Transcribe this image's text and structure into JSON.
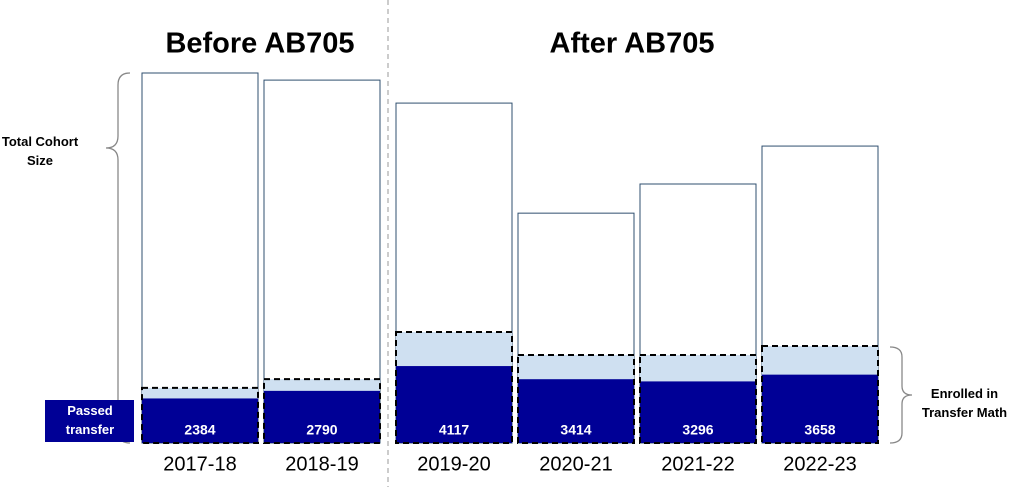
{
  "chart_data": {
    "type": "overlap-bar",
    "period_labels": [
      "Before AB705",
      "After AB705"
    ],
    "categories": [
      "2017-18",
      "2018-19",
      "2019-20",
      "2020-21",
      "2021-22",
      "2022-23"
    ],
    "series": [
      {
        "name": "Total Cohort Size",
        "color": "#ffffff",
        "values": [
          19800,
          19420,
          18190,
          12300,
          13860,
          15890
        ]
      },
      {
        "name": "Enrolled in Transfer Math",
        "color": "#cfe0f1",
        "values": [
          2950,
          3420,
          5940,
          4710,
          4710,
          5190
        ]
      },
      {
        "name": "Passed transfer math:",
        "color": "#000096",
        "values": [
          2384,
          2790,
          4117,
          3414,
          3296,
          3658
        ]
      }
    ]
  }
}
